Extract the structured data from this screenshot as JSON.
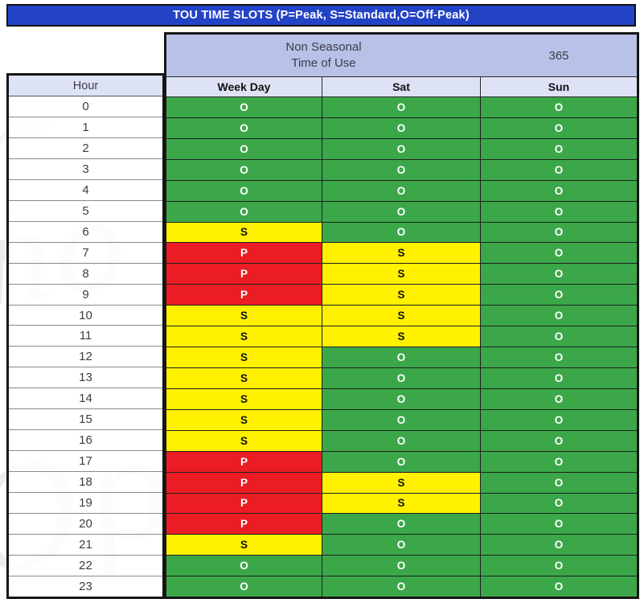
{
  "title_bar": {
    "label": "TOU TIME SLOTS (P=Peak, S=Standard,O=Off-Peak)"
  },
  "season_header": {
    "line1": "Non Seasonal",
    "line2": "Time of Use",
    "days_count": "365"
  },
  "columns": {
    "hour": "Hour",
    "weekday": "Week Day",
    "sat": "Sat",
    "sun": "Sun"
  },
  "legend": {
    "P": "Peak",
    "S": "Standard",
    "O": "Off-Peak"
  },
  "colors": {
    "peak": "#EC1C24",
    "standard": "#FFF100",
    "offpeak": "#3BA749",
    "title_blue": "#2343C6",
    "lav_dark": "#B8C2E8",
    "lav_light": "#DEE2F5"
  },
  "rows": [
    {
      "hour": "0",
      "weekday": "O",
      "sat": "O",
      "sun": "O"
    },
    {
      "hour": "1",
      "weekday": "O",
      "sat": "O",
      "sun": "O"
    },
    {
      "hour": "2",
      "weekday": "O",
      "sat": "O",
      "sun": "O"
    },
    {
      "hour": "3",
      "weekday": "O",
      "sat": "O",
      "sun": "O"
    },
    {
      "hour": "4",
      "weekday": "O",
      "sat": "O",
      "sun": "O"
    },
    {
      "hour": "5",
      "weekday": "O",
      "sat": "O",
      "sun": "O"
    },
    {
      "hour": "6",
      "weekday": "S",
      "sat": "O",
      "sun": "O"
    },
    {
      "hour": "7",
      "weekday": "P",
      "sat": "S",
      "sun": "O"
    },
    {
      "hour": "8",
      "weekday": "P",
      "sat": "S",
      "sun": "O"
    },
    {
      "hour": "9",
      "weekday": "P",
      "sat": "S",
      "sun": "O"
    },
    {
      "hour": "10",
      "weekday": "S",
      "sat": "S",
      "sun": "O"
    },
    {
      "hour": "11",
      "weekday": "S",
      "sat": "S",
      "sun": "O"
    },
    {
      "hour": "12",
      "weekday": "S",
      "sat": "O",
      "sun": "O"
    },
    {
      "hour": "13",
      "weekday": "S",
      "sat": "O",
      "sun": "O"
    },
    {
      "hour": "14",
      "weekday": "S",
      "sat": "O",
      "sun": "O"
    },
    {
      "hour": "15",
      "weekday": "S",
      "sat": "O",
      "sun": "O"
    },
    {
      "hour": "16",
      "weekday": "S",
      "sat": "O",
      "sun": "O"
    },
    {
      "hour": "17",
      "weekday": "P",
      "sat": "O",
      "sun": "O"
    },
    {
      "hour": "18",
      "weekday": "P",
      "sat": "S",
      "sun": "O"
    },
    {
      "hour": "19",
      "weekday": "P",
      "sat": "S",
      "sun": "O"
    },
    {
      "hour": "20",
      "weekday": "P",
      "sat": "O",
      "sun": "O"
    },
    {
      "hour": "21",
      "weekday": "S",
      "sat": "O",
      "sun": "O"
    },
    {
      "hour": "22",
      "weekday": "O",
      "sat": "O",
      "sun": "O"
    },
    {
      "hour": "23",
      "weekday": "O",
      "sat": "O",
      "sun": "O"
    }
  ],
  "chart_data": {
    "type": "table",
    "title": "TOU TIME SLOTS (P=Peak, S=Standard,O=Off-Peak)",
    "season": "Non Seasonal Time of Use",
    "days": 365,
    "columns": [
      "Hour",
      "Week Day",
      "Sat",
      "Sun"
    ],
    "codes": {
      "P": "Peak",
      "S": "Standard",
      "O": "Off-Peak"
    },
    "weekday": [
      "O",
      "O",
      "O",
      "O",
      "O",
      "O",
      "S",
      "P",
      "P",
      "P",
      "S",
      "S",
      "S",
      "S",
      "S",
      "S",
      "S",
      "P",
      "P",
      "P",
      "P",
      "S",
      "O",
      "O"
    ],
    "sat": [
      "O",
      "O",
      "O",
      "O",
      "O",
      "O",
      "O",
      "S",
      "S",
      "S",
      "S",
      "S",
      "O",
      "O",
      "O",
      "O",
      "O",
      "O",
      "S",
      "S",
      "O",
      "O",
      "O",
      "O"
    ],
    "sun": [
      "O",
      "O",
      "O",
      "O",
      "O",
      "O",
      "O",
      "O",
      "O",
      "O",
      "O",
      "O",
      "O",
      "O",
      "O",
      "O",
      "O",
      "O",
      "O",
      "O",
      "O",
      "O",
      "O",
      "O"
    ]
  }
}
